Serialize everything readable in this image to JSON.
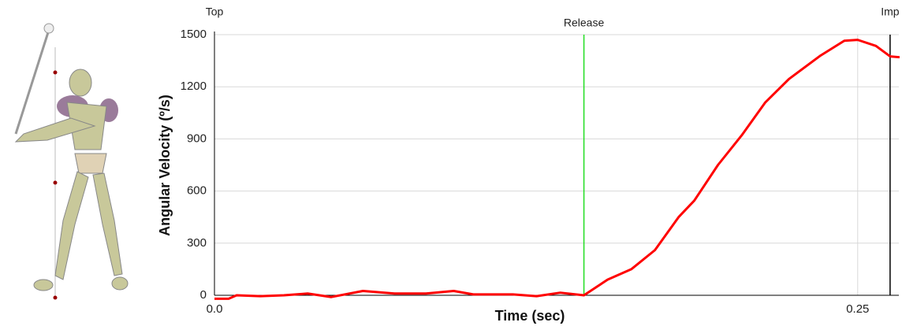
{
  "chart_data": {
    "type": "line",
    "y_label": "Angular Velocity (º/s)",
    "x_label": "Time (sec)",
    "xlim": [
      0,
      0.266
    ],
    "ylim": [
      0,
      1500
    ],
    "xticks": [
      {
        "value": 0,
        "label": "0.0"
      },
      0.25
    ],
    "yticks": [
      0,
      300,
      600,
      900,
      1200,
      1500
    ],
    "grid": true,
    "annotations": [
      {
        "label": "Top",
        "x": 0
      },
      {
        "label": "Release",
        "x": 0.1436,
        "color": "#22dd22"
      },
      {
        "label": "Imp",
        "x": 0.2626,
        "color": "#000000"
      }
    ],
    "series": [
      {
        "color": "#ff0000",
        "x": [
          0,
          0.0055,
          0.0086,
          0.0178,
          0.027,
          0.0362,
          0.0454,
          0.0577,
          0.07,
          0.0822,
          0.093,
          0.1006,
          0.116,
          0.1252,
          0.1344,
          0.1436,
          0.1528,
          0.162,
          0.1712,
          0.1804,
          0.1865,
          0.1957,
          0.2049,
          0.2141,
          0.2233,
          0.2356,
          0.2448,
          0.25,
          0.2571,
          0.2626,
          0.2663
        ],
        "values": [
          -20,
          -20,
          0,
          -5,
          0,
          10,
          -10,
          25,
          10,
          10,
          25,
          5,
          5,
          -5,
          15,
          0,
          90,
          150,
          260,
          450,
          545,
          750,
          920,
          1110,
          1245,
          1380,
          1465,
          1470,
          1435,
          1375,
          1370
        ]
      }
    ]
  }
}
